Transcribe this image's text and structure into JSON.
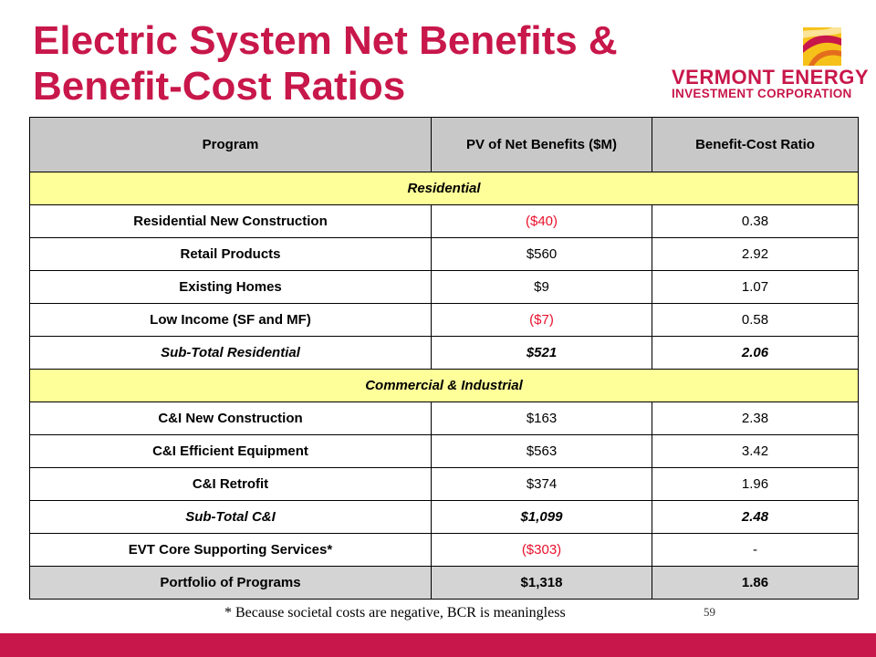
{
  "title": "Electric System Net Benefits & Benefit-Cost Ratios",
  "logo": {
    "line1": "VERMONT ENERGY",
    "line2": "INVESTMENT CORPORATION",
    "icon": "sun-swirl-logo-icon"
  },
  "table": {
    "headers": [
      "Program",
      "PV of Net Benefits ($M)",
      "Benefit-Cost Ratio"
    ],
    "rows": [
      {
        "type": "section",
        "label": "Residential"
      },
      {
        "type": "row",
        "program": "Residential New Construction",
        "pv": "($40)",
        "bcr": "0.38",
        "negative": true
      },
      {
        "type": "row",
        "program": "Retail Products",
        "pv": "$560",
        "bcr": "2.92",
        "negative": false
      },
      {
        "type": "row",
        "program": "Existing Homes",
        "pv": "$9",
        "bcr": "1.07",
        "negative": false
      },
      {
        "type": "row",
        "program": "Low Income (SF and MF)",
        "pv": "($7)",
        "bcr": "0.58",
        "negative": true
      },
      {
        "type": "subtotal",
        "program": "Sub-Total Residential",
        "pv": "$521",
        "bcr": "2.06",
        "negative": false
      },
      {
        "type": "section",
        "label": "Commercial & Industrial"
      },
      {
        "type": "row",
        "program": "C&I New Construction",
        "pv": "$163",
        "bcr": "2.38",
        "negative": false
      },
      {
        "type": "row",
        "program": "C&I  Efficient Equipment",
        "pv": "$563",
        "bcr": "3.42",
        "negative": false
      },
      {
        "type": "row",
        "program": "C&I Retrofit",
        "pv": "$374",
        "bcr": "1.96",
        "negative": false
      },
      {
        "type": "subtotal",
        "program": "Sub-Total C&I",
        "pv": "$1,099",
        "bcr": "2.48",
        "negative": false
      },
      {
        "type": "row",
        "program": "EVT Core Supporting Services*",
        "pv": "($303)",
        "bcr": "-",
        "negative": true
      },
      {
        "type": "total",
        "program": "Portfolio of Programs",
        "pv": "$1,318",
        "bcr": "1.86",
        "negative": false
      }
    ]
  },
  "footnote": "* Because societal costs are negative, BCR is meaningless",
  "page_number": "59",
  "colors": {
    "accent": "#c8174a",
    "negative": "#e8102c",
    "section_fill": "#ffff99",
    "header_fill": "#c8c8c8",
    "total_fill": "#d4d4d4"
  }
}
